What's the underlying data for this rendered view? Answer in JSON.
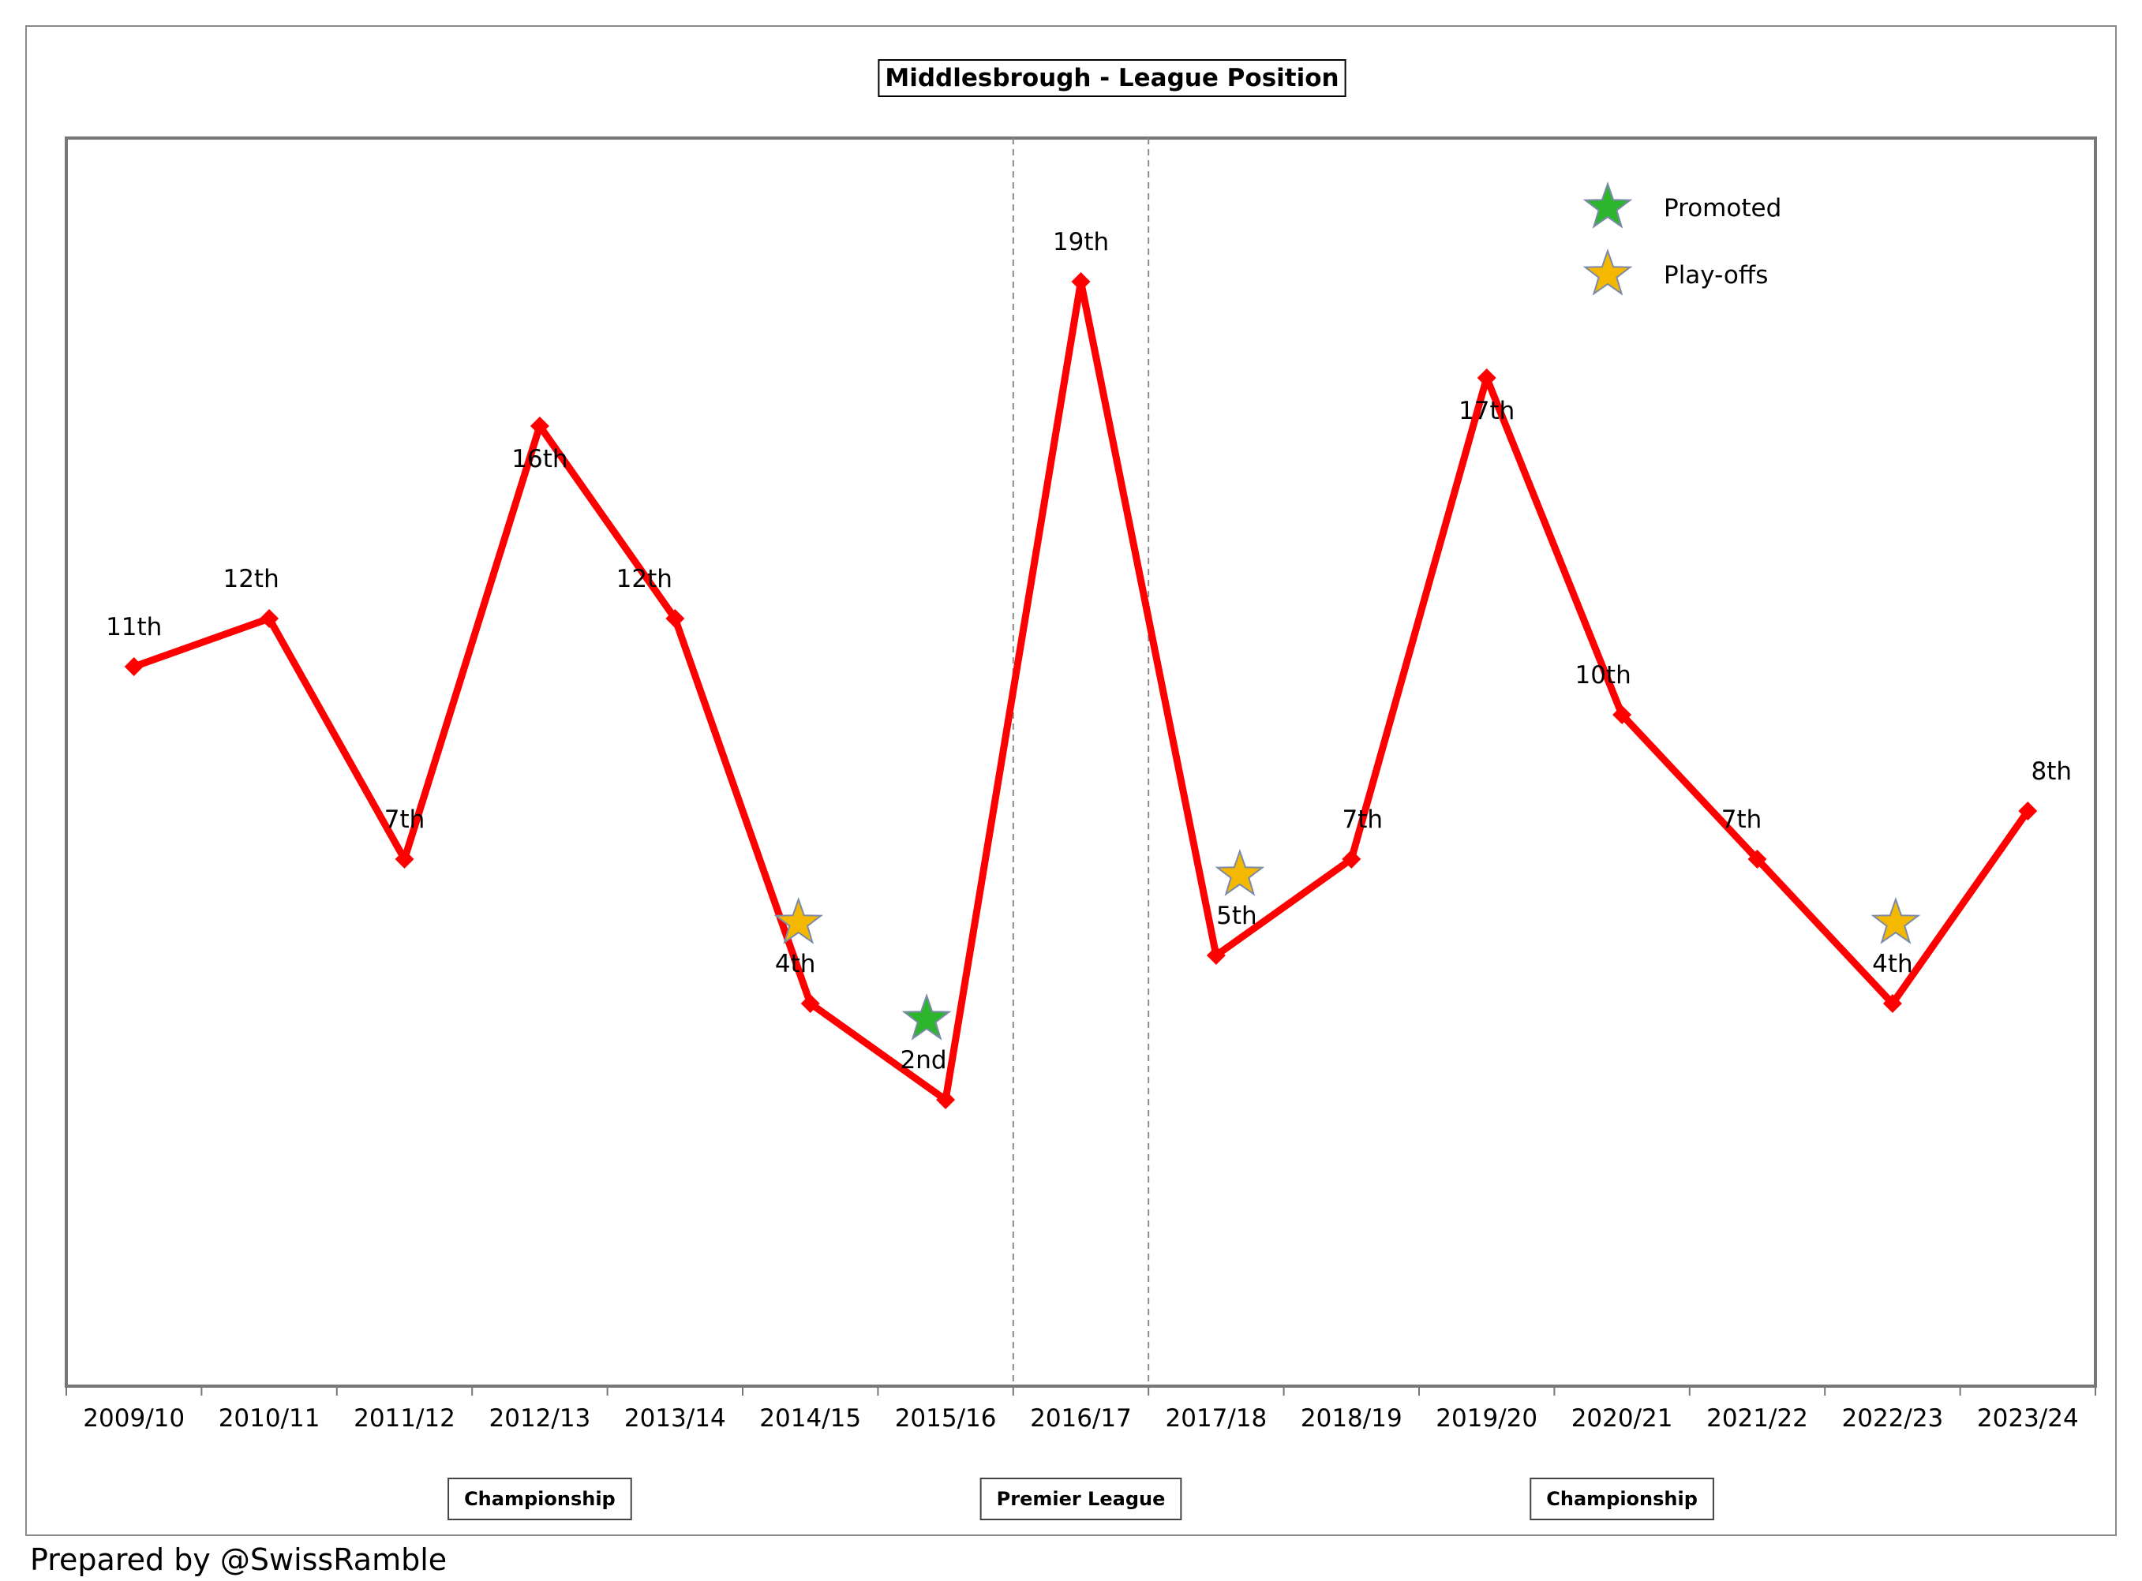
{
  "chart_data": {
    "type": "line",
    "title": "Middlesbrough - League Position",
    "categories": [
      "2009/10",
      "2010/11",
      "2011/12",
      "2012/13",
      "2013/14",
      "2014/15",
      "2015/16",
      "2016/17",
      "2017/18",
      "2018/19",
      "2019/20",
      "2020/21",
      "2021/22",
      "2022/23",
      "2023/24"
    ],
    "series": [
      {
        "values": [
          11,
          12,
          7,
          16,
          12,
          4,
          2,
          19,
          5,
          7,
          17,
          10,
          7,
          4,
          8
        ]
      }
    ],
    "point_labels": [
      "11th",
      "12th",
      "7th",
      "16th",
      "12th",
      "4th",
      "2nd",
      "19th",
      "5th",
      "7th",
      "17th",
      "10th",
      "7th",
      "4th",
      "8th"
    ],
    "markers": [
      {
        "season": "2014/15",
        "type": "playoffs"
      },
      {
        "season": "2015/16",
        "type": "promoted"
      },
      {
        "season": "2017/18",
        "type": "playoffs"
      },
      {
        "season": "2022/23",
        "type": "playoffs"
      }
    ],
    "legend": {
      "placement": "top-right",
      "items": [
        {
          "label": "Promoted",
          "type": "promoted",
          "color": "#2db52d"
        },
        {
          "label": "Play-offs",
          "type": "playoffs",
          "color": "#f5b800"
        }
      ]
    },
    "divisions": [
      {
        "label": "Championship",
        "from": "2009/10",
        "to": "2015/16"
      },
      {
        "label": "Premier League",
        "from": "2016/17",
        "to": "2016/17"
      },
      {
        "label": "Championship",
        "from": "2017/18",
        "to": "2023/24"
      }
    ],
    "line_color": "#ff0000",
    "grid": false
  },
  "footer": {
    "credit": "Prepared by @SwissRamble"
  }
}
